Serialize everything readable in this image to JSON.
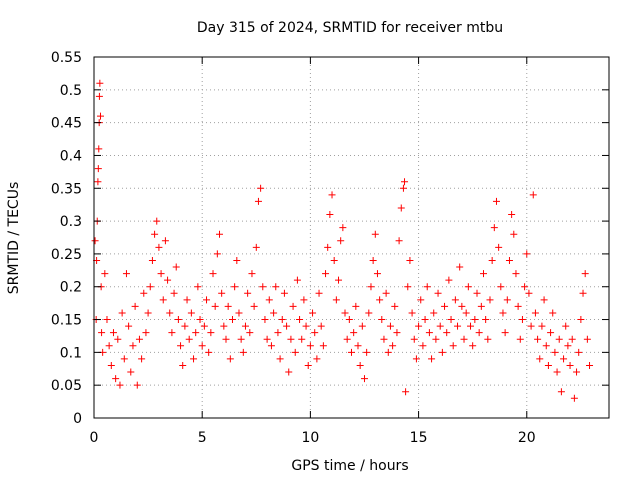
{
  "chart_data": {
    "type": "scatter",
    "title": "Day 315 of 2024, SRMTID for receiver mtbu",
    "xlabel": "GPS time / hours",
    "ylabel": "SRMTID / TECUs",
    "xlim": [
      0,
      23.8
    ],
    "ylim": [
      0,
      0.55
    ],
    "x_ticks": [
      "0",
      "5",
      "10",
      "15",
      "20"
    ],
    "x_tick_values": [
      0,
      5,
      10,
      15,
      20
    ],
    "y_ticks": [
      "0",
      "0.05",
      "0.1",
      "0.15",
      "0.2",
      "0.25",
      "0.3",
      "0.35",
      "0.4",
      "0.45",
      "0.5",
      "0.55"
    ],
    "y_tick_values": [
      0,
      0.05,
      0.1,
      0.15,
      0.2,
      0.25,
      0.3,
      0.35,
      0.4,
      0.45,
      0.5,
      0.55
    ],
    "grid": true,
    "marker": "plus",
    "color": "#ff0000",
    "series": [
      {
        "points": [
          [
            0.05,
            0.27
          ],
          [
            0.1,
            0.15
          ],
          [
            0.12,
            0.24
          ],
          [
            0.15,
            0.3
          ],
          [
            0.18,
            0.36
          ],
          [
            0.2,
            0.38
          ],
          [
            0.22,
            0.41
          ],
          [
            0.24,
            0.45
          ],
          [
            0.25,
            0.49
          ],
          [
            0.27,
            0.51
          ],
          [
            0.3,
            0.46
          ],
          [
            0.33,
            0.2
          ],
          [
            0.35,
            0.13
          ],
          [
            0.4,
            0.1
          ],
          [
            0.5,
            0.22
          ],
          [
            0.6,
            0.15
          ],
          [
            0.7,
            0.11
          ],
          [
            0.8,
            0.08
          ],
          [
            0.9,
            0.13
          ],
          [
            1.0,
            0.06
          ],
          [
            1.1,
            0.12
          ],
          [
            1.2,
            0.05
          ],
          [
            1.3,
            0.16
          ],
          [
            1.4,
            0.09
          ],
          [
            1.5,
            0.22
          ],
          [
            1.6,
            0.14
          ],
          [
            1.7,
            0.07
          ],
          [
            1.8,
            0.11
          ],
          [
            1.9,
            0.17
          ],
          [
            2.0,
            0.05
          ],
          [
            2.1,
            0.12
          ],
          [
            2.2,
            0.09
          ],
          [
            2.3,
            0.19
          ],
          [
            2.4,
            0.13
          ],
          [
            2.5,
            0.16
          ],
          [
            2.6,
            0.2
          ],
          [
            2.7,
            0.24
          ],
          [
            2.8,
            0.28
          ],
          [
            2.9,
            0.3
          ],
          [
            3.0,
            0.26
          ],
          [
            3.1,
            0.22
          ],
          [
            3.2,
            0.18
          ],
          [
            3.3,
            0.27
          ],
          [
            3.4,
            0.21
          ],
          [
            3.5,
            0.16
          ],
          [
            3.6,
            0.13
          ],
          [
            3.7,
            0.19
          ],
          [
            3.8,
            0.23
          ],
          [
            3.9,
            0.15
          ],
          [
            4.0,
            0.11
          ],
          [
            4.1,
            0.08
          ],
          [
            4.2,
            0.14
          ],
          [
            4.3,
            0.18
          ],
          [
            4.4,
            0.12
          ],
          [
            4.5,
            0.16
          ],
          [
            4.6,
            0.09
          ],
          [
            4.7,
            0.13
          ],
          [
            4.8,
            0.2
          ],
          [
            4.9,
            0.15
          ],
          [
            5.0,
            0.11
          ],
          [
            5.1,
            0.14
          ],
          [
            5.2,
            0.18
          ],
          [
            5.3,
            0.1
          ],
          [
            5.4,
            0.13
          ],
          [
            5.5,
            0.22
          ],
          [
            5.6,
            0.17
          ],
          [
            5.7,
            0.25
          ],
          [
            5.8,
            0.28
          ],
          [
            5.9,
            0.19
          ],
          [
            6.0,
            0.14
          ],
          [
            6.1,
            0.12
          ],
          [
            6.2,
            0.17
          ],
          [
            6.3,
            0.09
          ],
          [
            6.4,
            0.15
          ],
          [
            6.5,
            0.2
          ],
          [
            6.6,
            0.24
          ],
          [
            6.7,
            0.16
          ],
          [
            6.8,
            0.12
          ],
          [
            6.9,
            0.1
          ],
          [
            7.0,
            0.14
          ],
          [
            7.1,
            0.19
          ],
          [
            7.2,
            0.13
          ],
          [
            7.3,
            0.22
          ],
          [
            7.4,
            0.17
          ],
          [
            7.5,
            0.26
          ],
          [
            7.6,
            0.33
          ],
          [
            7.7,
            0.35
          ],
          [
            7.8,
            0.2
          ],
          [
            7.9,
            0.15
          ],
          [
            8.0,
            0.12
          ],
          [
            8.1,
            0.18
          ],
          [
            8.2,
            0.11
          ],
          [
            8.3,
            0.16
          ],
          [
            8.4,
            0.2
          ],
          [
            8.5,
            0.13
          ],
          [
            8.6,
            0.09
          ],
          [
            8.7,
            0.15
          ],
          [
            8.8,
            0.19
          ],
          [
            8.9,
            0.14
          ],
          [
            9.0,
            0.07
          ],
          [
            9.1,
            0.12
          ],
          [
            9.2,
            0.17
          ],
          [
            9.3,
            0.1
          ],
          [
            9.4,
            0.21
          ],
          [
            9.5,
            0.15
          ],
          [
            9.6,
            0.12
          ],
          [
            9.7,
            0.18
          ],
          [
            9.8,
            0.14
          ],
          [
            9.9,
            0.08
          ],
          [
            10.0,
            0.11
          ],
          [
            10.1,
            0.16
          ],
          [
            10.2,
            0.13
          ],
          [
            10.3,
            0.09
          ],
          [
            10.4,
            0.19
          ],
          [
            10.5,
            0.14
          ],
          [
            10.6,
            0.11
          ],
          [
            10.7,
            0.22
          ],
          [
            10.8,
            0.26
          ],
          [
            10.9,
            0.31
          ],
          [
            11.0,
            0.34
          ],
          [
            11.1,
            0.24
          ],
          [
            11.2,
            0.18
          ],
          [
            11.3,
            0.21
          ],
          [
            11.4,
            0.27
          ],
          [
            11.5,
            0.29
          ],
          [
            11.6,
            0.16
          ],
          [
            11.7,
            0.12
          ],
          [
            11.8,
            0.15
          ],
          [
            11.9,
            0.1
          ],
          [
            12.0,
            0.13
          ],
          [
            12.1,
            0.17
          ],
          [
            12.2,
            0.11
          ],
          [
            12.3,
            0.08
          ],
          [
            12.4,
            0.14
          ],
          [
            12.5,
            0.06
          ],
          [
            12.6,
            0.1
          ],
          [
            12.7,
            0.16
          ],
          [
            12.8,
            0.2
          ],
          [
            12.9,
            0.24
          ],
          [
            13.0,
            0.28
          ],
          [
            13.1,
            0.22
          ],
          [
            13.2,
            0.18
          ],
          [
            13.3,
            0.15
          ],
          [
            13.4,
            0.12
          ],
          [
            13.5,
            0.19
          ],
          [
            13.6,
            0.1
          ],
          [
            13.7,
            0.14
          ],
          [
            13.8,
            0.11
          ],
          [
            13.9,
            0.17
          ],
          [
            14.0,
            0.13
          ],
          [
            14.1,
            0.27
          ],
          [
            14.2,
            0.32
          ],
          [
            14.3,
            0.35
          ],
          [
            14.35,
            0.36
          ],
          [
            14.4,
            0.04
          ],
          [
            14.5,
            0.2
          ],
          [
            14.6,
            0.24
          ],
          [
            14.7,
            0.16
          ],
          [
            14.8,
            0.12
          ],
          [
            14.9,
            0.09
          ],
          [
            15.0,
            0.14
          ],
          [
            15.1,
            0.18
          ],
          [
            15.2,
            0.11
          ],
          [
            15.3,
            0.15
          ],
          [
            15.4,
            0.2
          ],
          [
            15.5,
            0.13
          ],
          [
            15.6,
            0.09
          ],
          [
            15.7,
            0.16
          ],
          [
            15.8,
            0.12
          ],
          [
            15.9,
            0.19
          ],
          [
            16.0,
            0.14
          ],
          [
            16.1,
            0.1
          ],
          [
            16.2,
            0.17
          ],
          [
            16.3,
            0.13
          ],
          [
            16.4,
            0.21
          ],
          [
            16.5,
            0.15
          ],
          [
            16.6,
            0.11
          ],
          [
            16.7,
            0.18
          ],
          [
            16.8,
            0.14
          ],
          [
            16.9,
            0.23
          ],
          [
            17.0,
            0.17
          ],
          [
            17.1,
            0.12
          ],
          [
            17.2,
            0.16
          ],
          [
            17.3,
            0.2
          ],
          [
            17.4,
            0.14
          ],
          [
            17.5,
            0.11
          ],
          [
            17.6,
            0.15
          ],
          [
            17.7,
            0.19
          ],
          [
            17.8,
            0.13
          ],
          [
            17.9,
            0.17
          ],
          [
            18.0,
            0.22
          ],
          [
            18.1,
            0.15
          ],
          [
            18.2,
            0.12
          ],
          [
            18.3,
            0.18
          ],
          [
            18.4,
            0.24
          ],
          [
            18.5,
            0.29
          ],
          [
            18.6,
            0.33
          ],
          [
            18.7,
            0.26
          ],
          [
            18.8,
            0.2
          ],
          [
            18.9,
            0.16
          ],
          [
            19.0,
            0.13
          ],
          [
            19.1,
            0.18
          ],
          [
            19.2,
            0.24
          ],
          [
            19.3,
            0.31
          ],
          [
            19.4,
            0.28
          ],
          [
            19.5,
            0.22
          ],
          [
            19.6,
            0.17
          ],
          [
            19.7,
            0.12
          ],
          [
            19.8,
            0.15
          ],
          [
            19.9,
            0.2
          ],
          [
            20.0,
            0.25
          ],
          [
            20.1,
            0.19
          ],
          [
            20.2,
            0.14
          ],
          [
            20.3,
            0.34
          ],
          [
            20.4,
            0.16
          ],
          [
            20.5,
            0.12
          ],
          [
            20.6,
            0.09
          ],
          [
            20.7,
            0.14
          ],
          [
            20.8,
            0.18
          ],
          [
            20.9,
            0.11
          ],
          [
            21.0,
            0.08
          ],
          [
            21.1,
            0.13
          ],
          [
            21.2,
            0.16
          ],
          [
            21.3,
            0.1
          ],
          [
            21.4,
            0.07
          ],
          [
            21.5,
            0.12
          ],
          [
            21.6,
            0.04
          ],
          [
            21.7,
            0.09
          ],
          [
            21.8,
            0.14
          ],
          [
            21.9,
            0.11
          ],
          [
            22.0,
            0.08
          ],
          [
            22.1,
            0.12
          ],
          [
            22.2,
            0.03
          ],
          [
            22.3,
            0.07
          ],
          [
            22.4,
            0.1
          ],
          [
            22.5,
            0.15
          ],
          [
            22.6,
            0.19
          ],
          [
            22.7,
            0.22
          ],
          [
            22.8,
            0.12
          ],
          [
            22.9,
            0.08
          ]
        ]
      }
    ]
  }
}
